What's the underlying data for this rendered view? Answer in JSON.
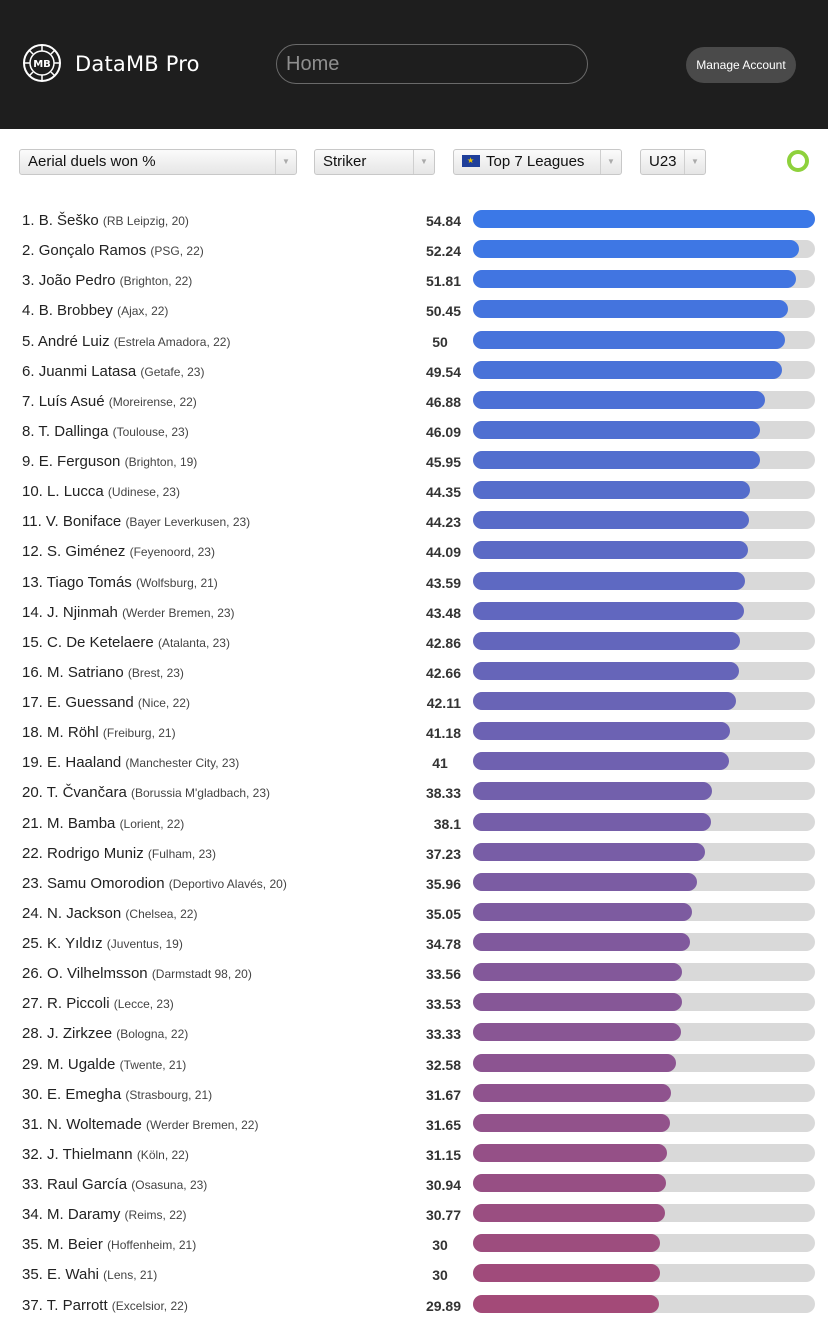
{
  "header": {
    "brand": "DataMB Pro",
    "logo_text": "MB",
    "search_placeholder": "Home",
    "manage_label": "Manage Account"
  },
  "filters": {
    "metric": "Aerial duels won %",
    "position": "Striker",
    "league": "Top 7 Leagues",
    "age": "U23"
  },
  "chart_data": {
    "type": "bar",
    "max_value": 54.84,
    "colors": {
      "start": "#3b78e7",
      "end": "#a34a78",
      "track": "#d9d9d9",
      "status": "#8ed13c"
    },
    "rows": [
      {
        "rank": "1.",
        "name": "B. Šeško",
        "meta": "(RB Leipzig, 20)",
        "value": "54.84"
      },
      {
        "rank": "2.",
        "name": "Gonçalo Ramos",
        "meta": "(PSG, 22)",
        "value": "52.24"
      },
      {
        "rank": "3.",
        "name": "João Pedro",
        "meta": "(Brighton, 22)",
        "value": "51.81"
      },
      {
        "rank": "4.",
        "name": "B. Brobbey",
        "meta": "(Ajax, 22)",
        "value": "50.45"
      },
      {
        "rank": "5.",
        "name": "André Luiz",
        "meta": "(Estrela Amadora, 22)",
        "value": "50"
      },
      {
        "rank": "6.",
        "name": "Juanmi Latasa",
        "meta": "(Getafe, 23)",
        "value": "49.54"
      },
      {
        "rank": "7.",
        "name": "Luís Asué",
        "meta": "(Moreirense, 22)",
        "value": "46.88"
      },
      {
        "rank": "8.",
        "name": "T. Dallinga",
        "meta": "(Toulouse, 23)",
        "value": "46.09"
      },
      {
        "rank": "9.",
        "name": "E. Ferguson",
        "meta": "(Brighton, 19)",
        "value": "45.95"
      },
      {
        "rank": "10.",
        "name": "L. Lucca",
        "meta": "(Udinese, 23)",
        "value": "44.35"
      },
      {
        "rank": "11.",
        "name": "V. Boniface",
        "meta": "(Bayer Leverkusen, 23)",
        "value": "44.23"
      },
      {
        "rank": "12.",
        "name": "S. Giménez",
        "meta": "(Feyenoord, 23)",
        "value": "44.09"
      },
      {
        "rank": "13.",
        "name": "Tiago Tomás",
        "meta": "(Wolfsburg, 21)",
        "value": "43.59"
      },
      {
        "rank": "14.",
        "name": "J. Njinmah",
        "meta": "(Werder Bremen, 23)",
        "value": "43.48"
      },
      {
        "rank": "15.",
        "name": "C. De Ketelaere",
        "meta": "(Atalanta, 23)",
        "value": "42.86"
      },
      {
        "rank": "16.",
        "name": "M. Satriano",
        "meta": "(Brest, 23)",
        "value": "42.66"
      },
      {
        "rank": "17.",
        "name": "E. Guessand",
        "meta": "(Nice, 22)",
        "value": "42.11"
      },
      {
        "rank": "18.",
        "name": "M. Röhl",
        "meta": "(Freiburg, 21)",
        "value": "41.18"
      },
      {
        "rank": "19.",
        "name": "E. Haaland",
        "meta": "(Manchester City, 23)",
        "value": "41"
      },
      {
        "rank": "20.",
        "name": "T. Čvančara",
        "meta": "(Borussia M'gladbach, 23)",
        "value": "38.33"
      },
      {
        "rank": "21.",
        "name": "M. Bamba",
        "meta": "(Lorient, 22)",
        "value": "38.1"
      },
      {
        "rank": "22.",
        "name": "Rodrigo Muniz",
        "meta": "(Fulham, 23)",
        "value": "37.23"
      },
      {
        "rank": "23.",
        "name": "Samu Omorodion",
        "meta": "(Deportivo Alavés, 20)",
        "value": "35.96"
      },
      {
        "rank": "24.",
        "name": "N. Jackson",
        "meta": "(Chelsea, 22)",
        "value": "35.05"
      },
      {
        "rank": "25.",
        "name": "K. Yıldız",
        "meta": "(Juventus, 19)",
        "value": "34.78"
      },
      {
        "rank": "26.",
        "name": "O. Vilhelmsson",
        "meta": "(Darmstadt 98, 20)",
        "value": "33.56"
      },
      {
        "rank": "27.",
        "name": "R. Piccoli",
        "meta": "(Lecce, 23)",
        "value": "33.53"
      },
      {
        "rank": "28.",
        "name": "J. Zirkzee",
        "meta": "(Bologna, 22)",
        "value": "33.33"
      },
      {
        "rank": "29.",
        "name": "M. Ugalde",
        "meta": "(Twente, 21)",
        "value": "32.58"
      },
      {
        "rank": "30.",
        "name": "E. Emegha",
        "meta": "(Strasbourg, 21)",
        "value": "31.67"
      },
      {
        "rank": "31.",
        "name": "N. Woltemade",
        "meta": "(Werder Bremen, 22)",
        "value": "31.65"
      },
      {
        "rank": "32.",
        "name": "J. Thielmann",
        "meta": "(Köln, 22)",
        "value": "31.15"
      },
      {
        "rank": "33.",
        "name": "Raul García",
        "meta": "(Osasuna, 23)",
        "value": "30.94"
      },
      {
        "rank": "34.",
        "name": "M. Daramy",
        "meta": "(Reims, 22)",
        "value": "30.77"
      },
      {
        "rank": "35.",
        "name": "M. Beier",
        "meta": "(Hoffenheim, 21)",
        "value": "30"
      },
      {
        "rank": "35.",
        "name": "E. Wahi",
        "meta": "(Lens, 21)",
        "value": "30"
      },
      {
        "rank": "37.",
        "name": "T. Parrott",
        "meta": "(Excelsior, 22)",
        "value": "29.89"
      }
    ]
  }
}
